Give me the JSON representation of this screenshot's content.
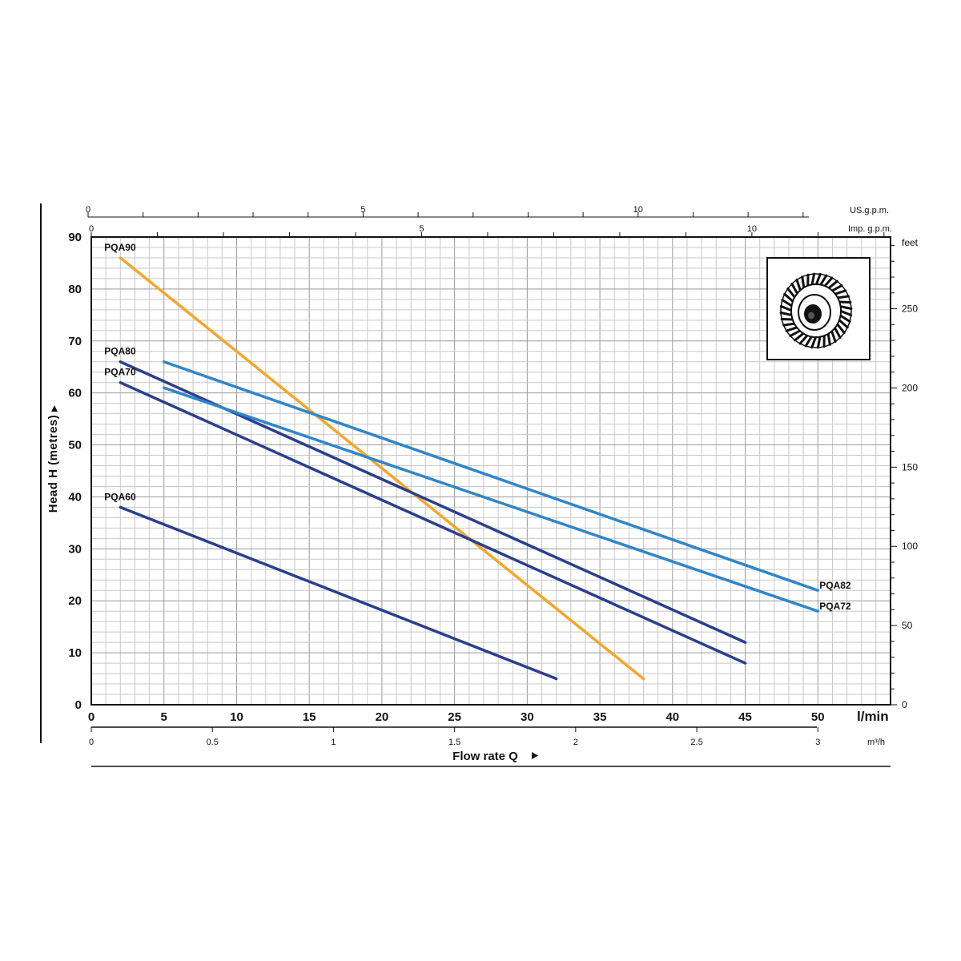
{
  "chart_data": {
    "type": "line",
    "xlabel": "Flow rate Q",
    "ylabel": "Head H (metres)",
    "x_unit": "l/min",
    "x_unit_secondary": "m³/h",
    "y_unit_secondary": "feet",
    "top_axis_us": "US.g.p.m.",
    "top_axis_imp": "Imp. g.p.m.",
    "xlim": [
      0,
      55
    ],
    "ylim": [
      0,
      90
    ],
    "grid": true,
    "x_ticks": [
      0,
      5,
      10,
      15,
      20,
      25,
      30,
      35,
      40,
      45,
      50
    ],
    "x_tick_labels": [
      "0",
      "5",
      "10",
      "15",
      "20",
      "25",
      "30",
      "35",
      "40",
      "45",
      "50"
    ],
    "y_ticks": [
      0,
      10,
      20,
      30,
      40,
      50,
      60,
      70,
      80,
      90
    ],
    "y_tick_labels": [
      "0",
      "10",
      "20",
      "30",
      "40",
      "50",
      "60",
      "70",
      "80",
      "90"
    ],
    "m3h_ticks": [
      0,
      0.5,
      1,
      1.5,
      2,
      2.5,
      3
    ],
    "m3h_tick_labels": [
      "0",
      "0.5",
      "1",
      "1.5",
      "2",
      "2.5",
      "3"
    ],
    "feet_ticks": [
      0,
      50,
      100,
      150,
      200,
      250
    ],
    "feet_tick_labels": [
      "0",
      "50",
      "100",
      "150",
      "200",
      "250"
    ],
    "usgpm_ticks": [
      0,
      5,
      10
    ],
    "usgpm_tick_labels": [
      "0",
      "5",
      "10"
    ],
    "impgpm_ticks": [
      0,
      5,
      10
    ],
    "impgpm_tick_labels": [
      "0",
      "5",
      "10"
    ],
    "series": [
      {
        "name": "PQA90",
        "color": "#f2a72b",
        "x": [
          2,
          38
        ],
        "y": [
          86,
          5
        ],
        "label_side": "start"
      },
      {
        "name": "PQA80",
        "color": "#2b3f8c",
        "x": [
          2,
          45
        ],
        "y": [
          66,
          12
        ],
        "label_side": "start"
      },
      {
        "name": "PQA70",
        "color": "#2b3f8c",
        "x": [
          2,
          45
        ],
        "y": [
          62,
          8
        ],
        "label_side": "start"
      },
      {
        "name": "PQA60",
        "color": "#2b3f8c",
        "x": [
          2,
          32
        ],
        "y": [
          38,
          5
        ],
        "label_side": "start"
      },
      {
        "name": "PQA82",
        "color": "#2f86c8",
        "x": [
          5,
          50
        ],
        "y": [
          66,
          22
        ],
        "label_side": "end"
      },
      {
        "name": "PQA72",
        "color": "#2f86c8",
        "x": [
          5,
          50
        ],
        "y": [
          61,
          18
        ],
        "label_side": "end"
      }
    ],
    "inset": {
      "icon": "impeller-icon"
    }
  }
}
